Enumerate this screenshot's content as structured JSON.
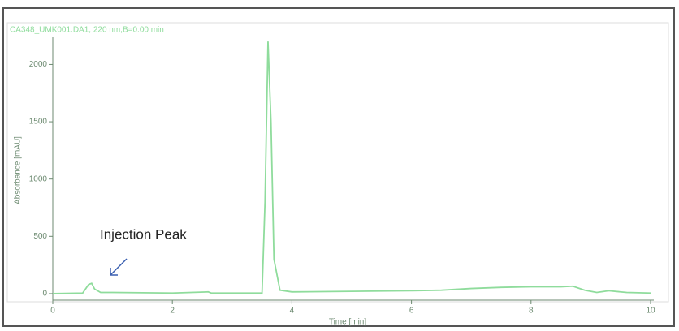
{
  "chart_data": {
    "type": "line",
    "title": "CA348_UMK001.DA1, 220 nm,B=0.00 min",
    "xlabel": "Time [min]",
    "ylabel": "Absorbance [mAU]",
    "annotation": "Injection Peak",
    "x": [
      0,
      0.5,
      0.6,
      0.65,
      0.7,
      0.8,
      1,
      2,
      2.6,
      2.65,
      2.7,
      3.5,
      3.55,
      3.6,
      3.65,
      3.7,
      3.8,
      4,
      5,
      6,
      6.5,
      7,
      7.5,
      8,
      8.5,
      8.7,
      8.9,
      9.1,
      9.3,
      9.6,
      10
    ],
    "series": [
      {
        "color": "#8fdc9c",
        "values": [
          0,
          5,
          80,
          90,
          40,
          10,
          10,
          5,
          15,
          5,
          5,
          5,
          800,
          2200,
          1500,
          300,
          30,
          15,
          20,
          25,
          30,
          45,
          55,
          60,
          60,
          65,
          30,
          10,
          25,
          10,
          5
        ]
      }
    ],
    "xlim": [
      0,
      10
    ],
    "xticks": [
      0,
      2,
      4,
      6,
      8,
      10
    ],
    "ylim": [
      -50,
      2350
    ],
    "yticks": [
      0,
      500,
      1000,
      1500,
      2000
    ]
  }
}
